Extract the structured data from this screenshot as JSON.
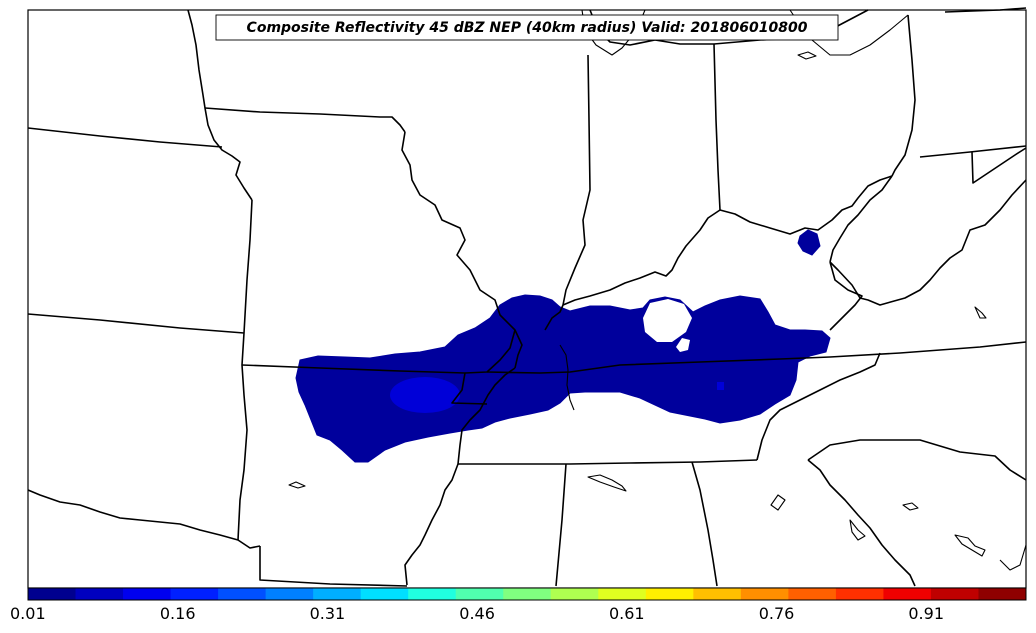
{
  "title": "Composite Reflectivity 45 dBZ NEP (40km radius) Valid: 201806010800",
  "colorbar": {
    "colors": [
      "#00008f",
      "#0000bf",
      "#0000ef",
      "#0020ff",
      "#0050ff",
      "#0080ff",
      "#00afff",
      "#00dfff",
      "#20ffdf",
      "#50ffaf",
      "#80ff80",
      "#afff50",
      "#dfff20",
      "#ffef00",
      "#ffbf00",
      "#ff8f00",
      "#ff6000",
      "#ff3000",
      "#ef0000",
      "#bf0000",
      "#8f0000"
    ],
    "tick_labels": [
      "0.01",
      "0.16",
      "0.31",
      "0.46",
      "0.61",
      "0.76",
      "0.91"
    ]
  },
  "probability_area": {
    "fill_color": "#00009c",
    "peak_color": "#0000d8"
  }
}
